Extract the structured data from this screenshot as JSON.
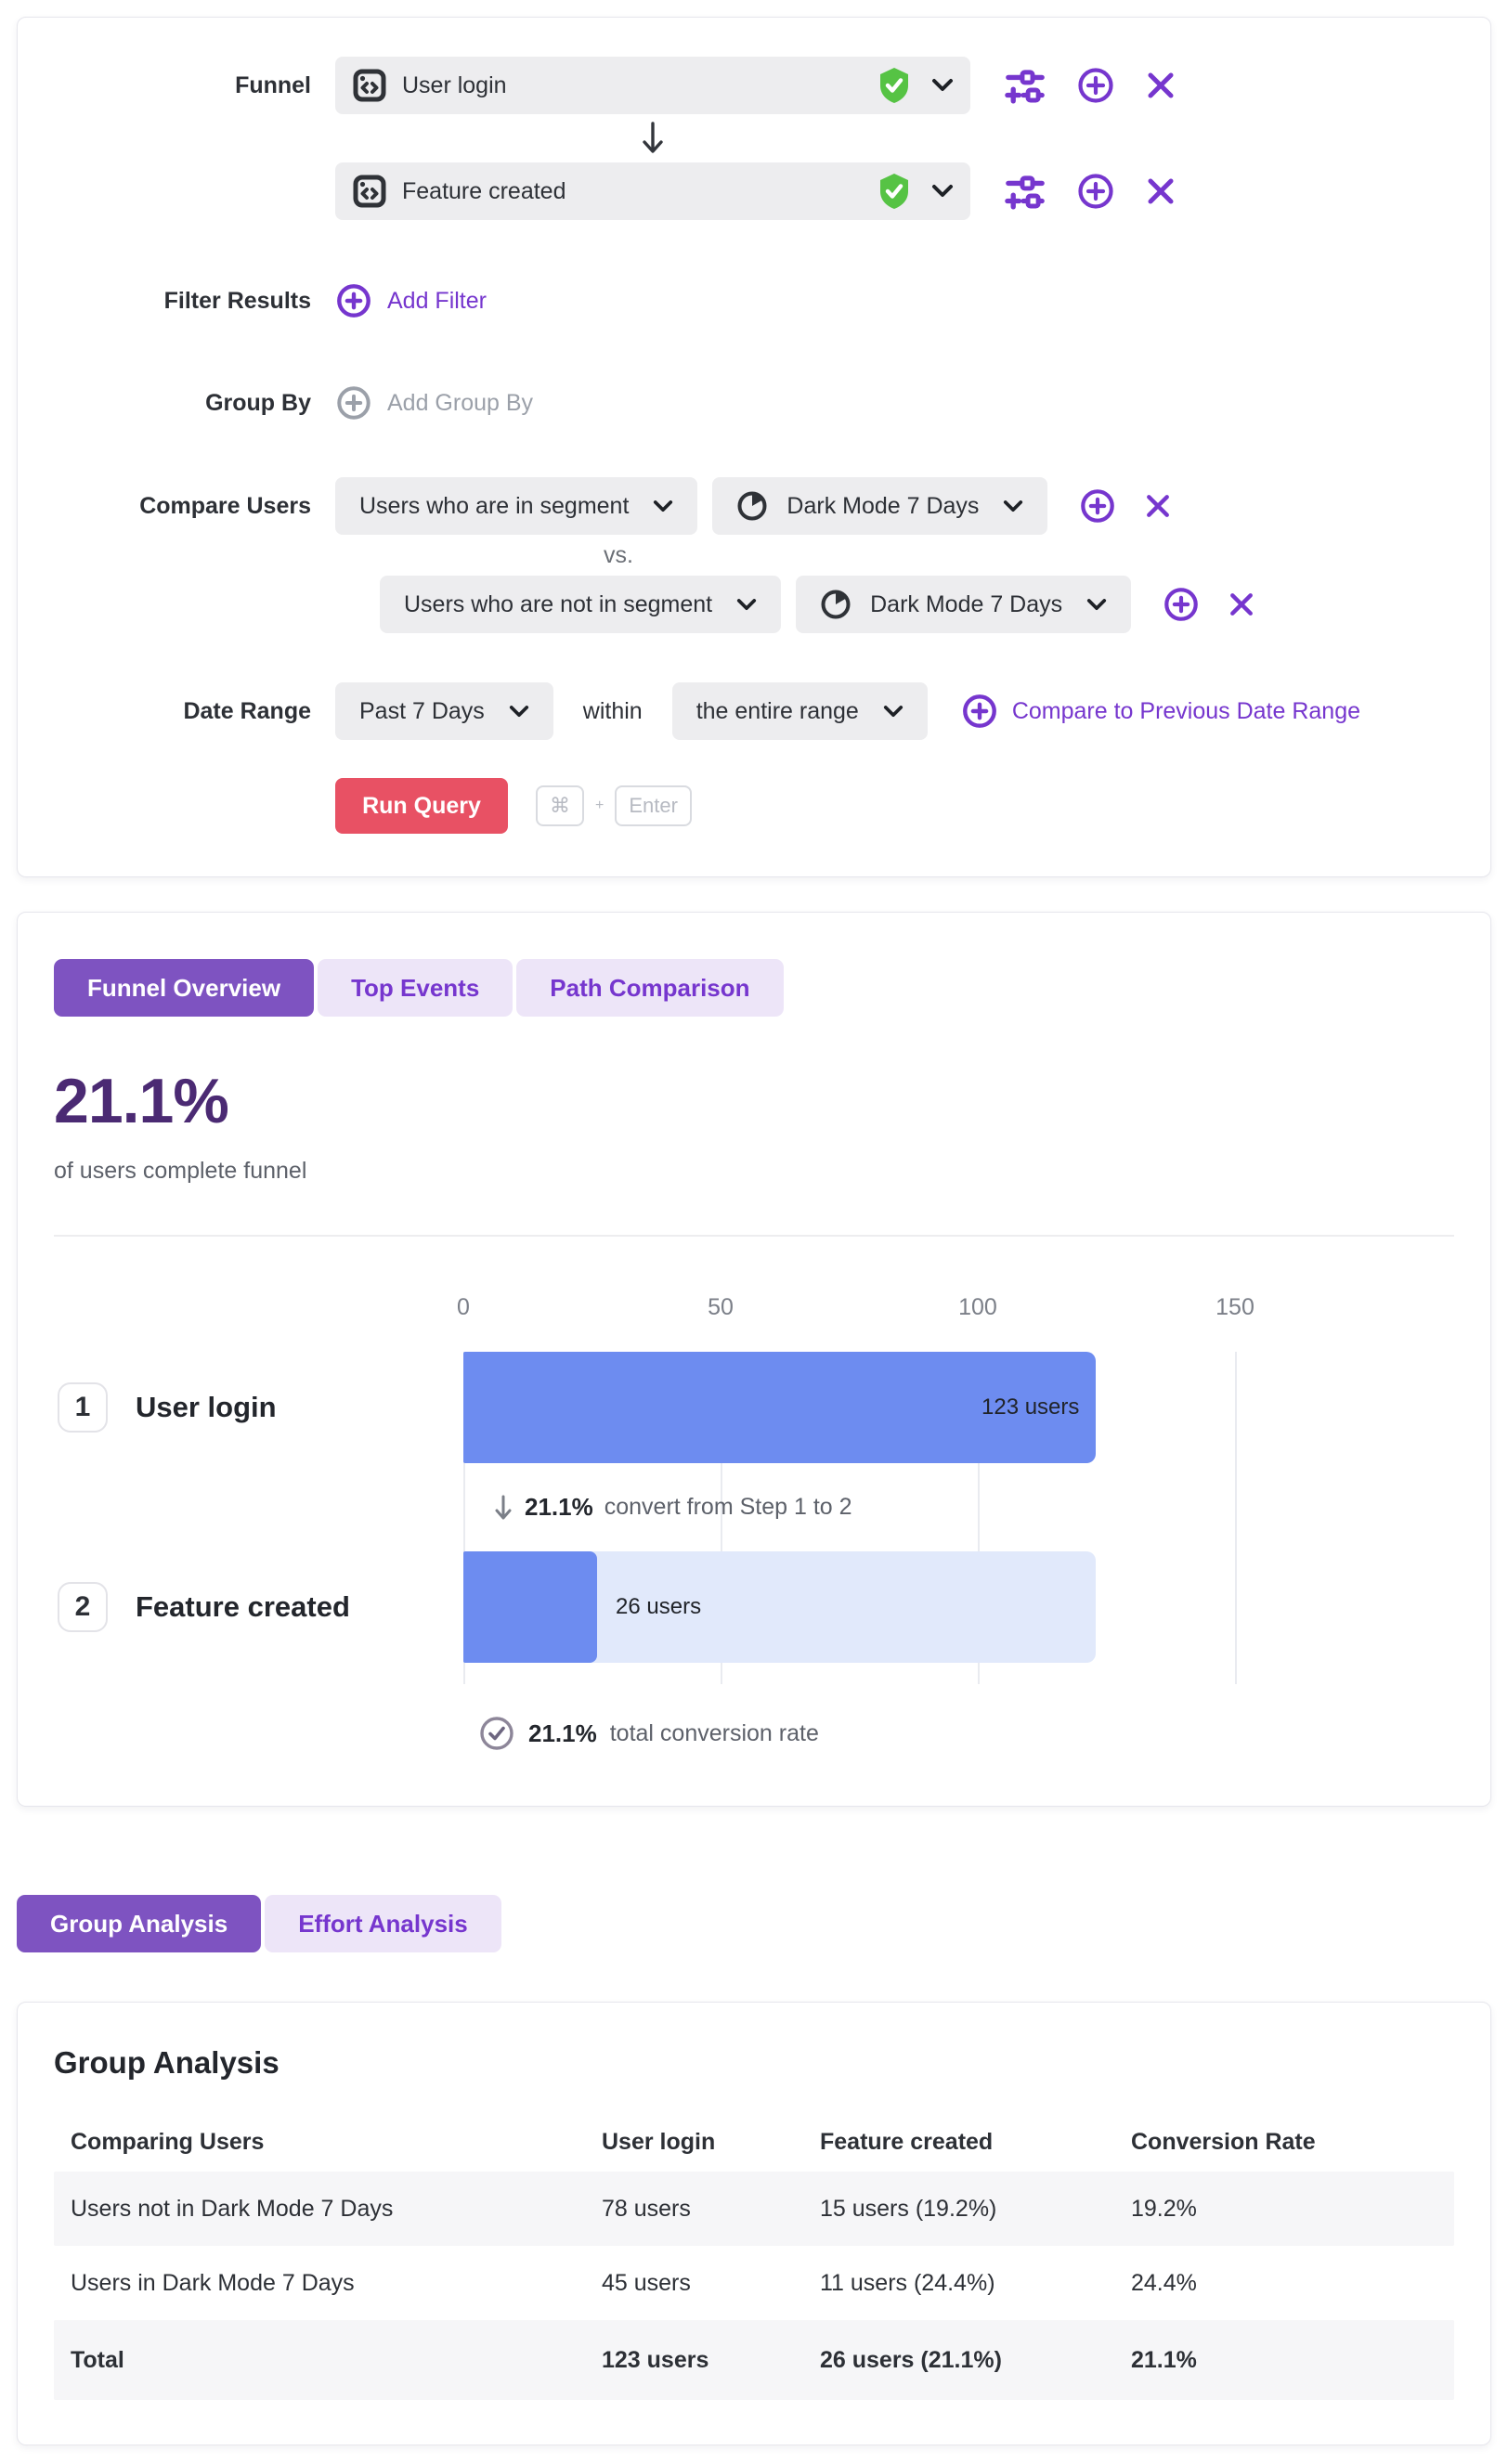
{
  "colors": {
    "accent_purple": "#7636ce",
    "tab_active_purple": "#7e53c1",
    "tab_inactive_bg": "#ede5f8",
    "run_query_red": "#e85164",
    "verified_green": "#56c344",
    "bar_blue": "#6d8cf0",
    "bar_track_blue": "#e1e9fb",
    "headline_purple": "#4b2a73"
  },
  "query_builder": {
    "funnel_label": "Funnel",
    "steps": [
      {
        "name": "User login"
      },
      {
        "name": "Feature created"
      }
    ],
    "filter_results": {
      "label": "Filter Results",
      "add_label": "Add Filter"
    },
    "group_by": {
      "label": "Group By",
      "add_label": "Add Group By"
    },
    "compare_users": {
      "label": "Compare Users",
      "vs_label": "vs.",
      "rows": [
        {
          "selector": "Users who are in segment",
          "segment": "Dark Mode 7 Days"
        },
        {
          "selector": "Users who are not in segment",
          "segment": "Dark Mode 7 Days"
        }
      ]
    },
    "date_range": {
      "label": "Date Range",
      "range_value": "Past 7 Days",
      "within_label": "within",
      "window_value": "the entire range",
      "compare_link": "Compare to Previous Date Range"
    },
    "run_query_label": "Run Query",
    "shortcut": {
      "meta_key": "⌘",
      "plus": "+",
      "enter_key": "Enter"
    }
  },
  "results": {
    "tabs": [
      {
        "label": "Funnel Overview",
        "active": true
      },
      {
        "label": "Top Events",
        "active": false
      },
      {
        "label": "Path Comparison",
        "active": false
      }
    ],
    "headline_value": "21.1%",
    "headline_caption": "of users complete funnel"
  },
  "chart_data": {
    "type": "bar",
    "orientation": "horizontal",
    "x_axis": {
      "ticks": [
        "0",
        "50",
        "100",
        "150"
      ],
      "tick_values": [
        0,
        50,
        100,
        150
      ],
      "max": 150
    },
    "steps": [
      {
        "index": "1",
        "label": "User login",
        "users": 123,
        "value_label": "123 users"
      },
      {
        "index": "2",
        "label": "Feature created",
        "users": 26,
        "value_label": "26 users"
      }
    ],
    "step_conversion": {
      "value": "21.1%",
      "text": "convert from Step 1 to 2"
    },
    "total_conversion": {
      "value": "21.1%",
      "text": "total conversion rate"
    },
    "grid": true,
    "legend": false
  },
  "analysis": {
    "tabs": [
      {
        "label": "Group Analysis",
        "active": true
      },
      {
        "label": "Effort Analysis",
        "active": false
      }
    ],
    "title": "Group Analysis",
    "table": {
      "columns": [
        "Comparing Users",
        "User login",
        "Feature created",
        "Conversion Rate"
      ],
      "rows": [
        {
          "cells": [
            "Users not in Dark Mode 7 Days",
            "78 users",
            "15 users (19.2%)",
            "19.2%"
          ]
        },
        {
          "cells": [
            "Users in Dark Mode 7 Days",
            "45 users",
            "11 users (24.4%)",
            "24.4%"
          ]
        },
        {
          "cells": [
            "Total",
            "123 users",
            "26 users (21.1%)",
            "21.1%"
          ]
        }
      ]
    }
  }
}
